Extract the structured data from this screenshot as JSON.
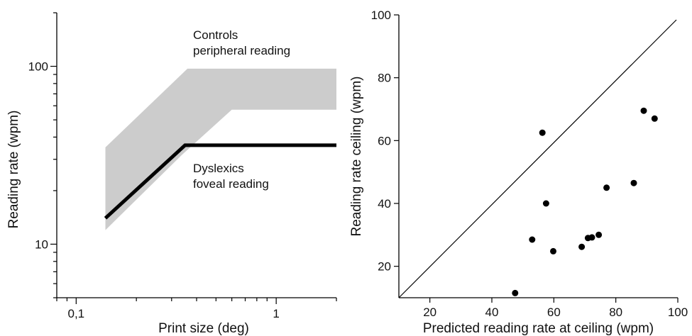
{
  "chart_data": [
    {
      "type": "line",
      "xscale": "log",
      "yscale": "log",
      "xlim": [
        0.08,
        2
      ],
      "ylim": [
        5,
        200
      ],
      "xlabel": "Print size (deg)",
      "ylabel": "Reading rate (wpm)",
      "x_ticks_major": [
        0.1,
        1
      ],
      "x_tick_labels": [
        "0,1",
        "1"
      ],
      "y_ticks_major": [
        10,
        100
      ],
      "y_tick_labels": [
        "10",
        "100"
      ],
      "band": {
        "upper": [
          {
            "x": 0.14,
            "y": 35
          },
          {
            "x": 0.36,
            "y": 97
          },
          {
            "x": 2,
            "y": 97
          }
        ],
        "lower": [
          {
            "x": 0.14,
            "y": 12
          },
          {
            "x": 0.34,
            "y": 32
          },
          {
            "x": 0.6,
            "y": 57
          },
          {
            "x": 2,
            "y": 57
          }
        ]
      },
      "series": [
        {
          "points": [
            {
              "x": 0.14,
              "y": 14
            },
            {
              "x": 0.35,
              "y": 36
            },
            {
              "x": 2,
              "y": 36
            }
          ]
        }
      ],
      "annotations": [
        {
          "lines": [
            "Controls",
            "peripheral reading"
          ]
        },
        {
          "lines": [
            "Dyslexics",
            "foveal reading"
          ]
        }
      ],
      "colors": {
        "band": "#cccccc",
        "line": "#000000"
      }
    },
    {
      "type": "scatter",
      "xlim": [
        10,
        100
      ],
      "ylim": [
        10,
        100
      ],
      "xlabel": "Predicted reading rate at ceiling (wpm)",
      "ylabel": "Reading rate ceiling (wpm)",
      "x_ticks": [
        20,
        40,
        60,
        80,
        100
      ],
      "y_ticks": [
        20,
        40,
        60,
        80,
        100
      ],
      "identity_line": true,
      "points": [
        {
          "x": 47.5,
          "y": 11.5
        },
        {
          "x": 53,
          "y": 28.5
        },
        {
          "x": 56.3,
          "y": 62.5
        },
        {
          "x": 57.5,
          "y": 40
        },
        {
          "x": 59.8,
          "y": 24.8
        },
        {
          "x": 69,
          "y": 26.2
        },
        {
          "x": 71,
          "y": 29
        },
        {
          "x": 72.3,
          "y": 29.2
        },
        {
          "x": 74.5,
          "y": 30
        },
        {
          "x": 77,
          "y": 45
        },
        {
          "x": 85.8,
          "y": 46.5
        },
        {
          "x": 89,
          "y": 69.5
        },
        {
          "x": 92.5,
          "y": 67
        }
      ]
    }
  ]
}
